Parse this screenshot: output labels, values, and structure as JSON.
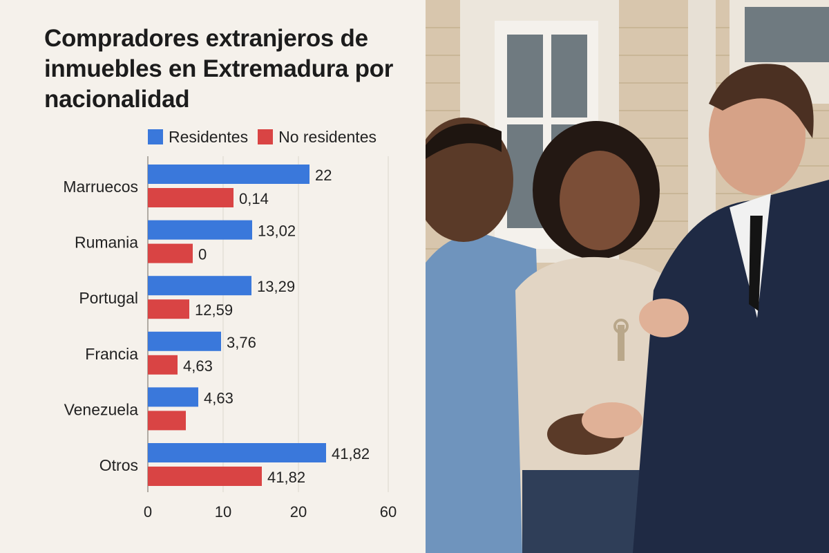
{
  "chart_data": {
    "type": "bar",
    "orientation": "horizontal",
    "title": "Compradores extranjeros de inmuebles en Extremadura por nacionalidad",
    "categories": [
      "Marruecos",
      "Rumania",
      "Portugal",
      "Francia",
      "Venezuela",
      "Otros"
    ],
    "series": [
      {
        "name": "Residentes",
        "color": "#3a78db",
        "values": [
          22,
          13.02,
          13.29,
          3.76,
          4.63,
          41.82
        ],
        "labels": [
          "22",
          "13,02",
          "13,29",
          "3,76",
          "4,63",
          "41,82"
        ]
      },
      {
        "name": "No residentes",
        "color": "#d94444",
        "values": [
          0.14,
          0,
          12.59,
          4.63,
          null,
          41.82
        ],
        "labels": [
          "0,14",
          "0",
          "12,59",
          "4,63",
          "",
          "41,82"
        ]
      }
    ],
    "xlim": [
      0,
      60
    ],
    "xticks": [
      {
        "value": 0,
        "label": "0"
      },
      {
        "value": 10,
        "label": "10"
      },
      {
        "value": 20,
        "label": "20"
      },
      {
        "value": 60,
        "label": "60"
      }
    ],
    "grid": true,
    "legend_position": "top"
  },
  "photo": {
    "description_icon": "handshake-key-handover-photo"
  }
}
